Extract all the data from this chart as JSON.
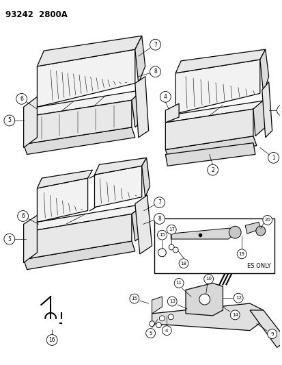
{
  "title": "93242  2800A",
  "bg": "#ffffff",
  "lc": "#000000",
  "fig_w": 4.14,
  "fig_h": 5.33,
  "dpi": 100
}
